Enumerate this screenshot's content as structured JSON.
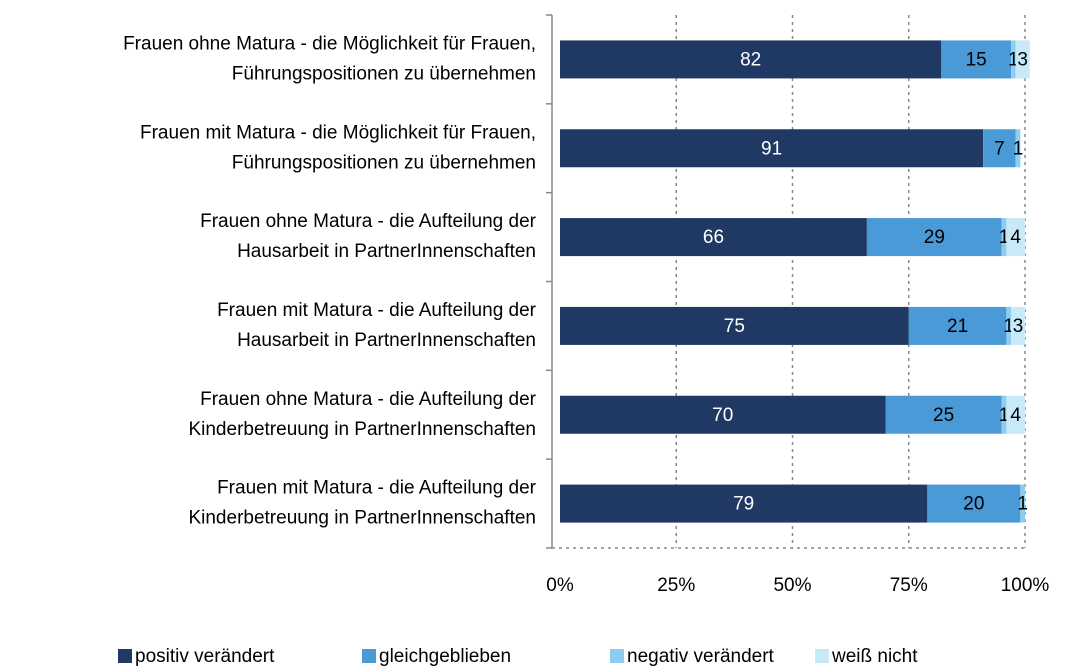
{
  "chart_data": {
    "type": "bar_stacked_horizontal",
    "categories": [
      [
        "Frauen ohne Matura - die Möglichkeit für Frauen,",
        "Führungspositionen zu übernehmen"
      ],
      [
        "Frauen mit Matura - die Möglichkeit für Frauen,",
        "Führungspositionen zu übernehmen"
      ],
      [
        "Frauen ohne Matura - die Aufteilung der",
        "Hausarbeit in PartnerInnenschaften"
      ],
      [
        "Frauen mit Matura - die Aufteilung der",
        "Hausarbeit in PartnerInnenschaften"
      ],
      [
        "Frauen ohne Matura - die Aufteilung der",
        "Kinderbetreuung in PartnerInnenschaften"
      ],
      [
        "Frauen mit Matura - die Aufteilung der",
        "Kinderbetreuung in PartnerInnenschaften"
      ]
    ],
    "series": [
      {
        "name": "positiv verändert",
        "color": "#203864",
        "values": [
          82,
          91,
          66,
          75,
          70,
          79
        ]
      },
      {
        "name": "gleichgeblieben",
        "color": "#4a9ad8",
        "values": [
          15,
          7,
          29,
          21,
          25,
          20
        ]
      },
      {
        "name": "negativ verändert",
        "color": "#8fcdf0",
        "values": [
          1,
          1,
          1,
          1,
          1,
          1
        ]
      },
      {
        "name": "weiß nicht",
        "color": "#c8e9f8",
        "values": [
          3,
          null,
          4,
          3,
          4,
          null
        ]
      }
    ],
    "xlim": [
      0,
      100
    ],
    "xticks": [
      {
        "value": 0,
        "label": "0%"
      },
      {
        "value": 25,
        "label": "25%"
      },
      {
        "value": 50,
        "label": "50%"
      },
      {
        "value": 75,
        "label": "75%"
      },
      {
        "value": 100,
        "label": "100%"
      }
    ],
    "grid": true
  }
}
